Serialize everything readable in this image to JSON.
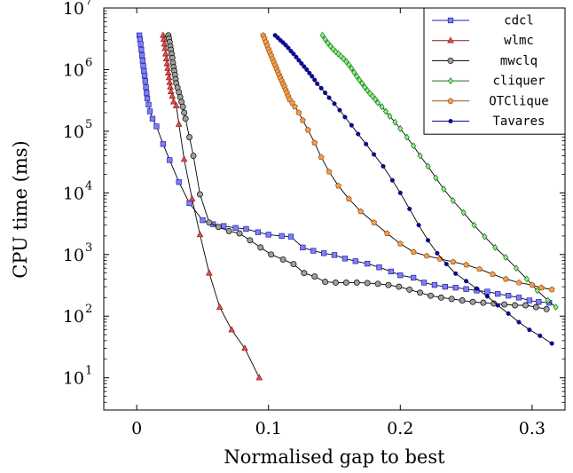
{
  "chart_data": {
    "type": "line",
    "title": "",
    "xlabel": "Normalised gap to best",
    "ylabel": "CPU time (ms)",
    "xlim": [
      -0.025,
      0.325
    ],
    "ylim": [
      3,
      10000000
    ],
    "y_scale": "log",
    "grid": false,
    "legend_position": "top-right",
    "x_ticks": [
      {
        "value": 0,
        "label": "0"
      },
      {
        "value": 0.1,
        "label": "0.1"
      },
      {
        "value": 0.2,
        "label": "0.2"
      },
      {
        "value": 0.3,
        "label": "0.3"
      }
    ],
    "y_ticks": [
      {
        "value": 10,
        "base": "10",
        "exp": "1"
      },
      {
        "value": 100,
        "base": "10",
        "exp": "2"
      },
      {
        "value": 1000,
        "base": "10",
        "exp": "3"
      },
      {
        "value": 10000,
        "base": "10",
        "exp": "4"
      },
      {
        "value": 100000,
        "base": "10",
        "exp": "5"
      },
      {
        "value": 1000000,
        "base": "10",
        "exp": "6"
      },
      {
        "value": 10000000,
        "base": "10",
        "exp": "7"
      }
    ],
    "series": [
      {
        "name": "cdcl",
        "color": "#1f1fb4",
        "fill": "#8080ee",
        "marker": "square",
        "points": [
          [
            0.002,
            3600000
          ],
          [
            0.0025,
            3100000
          ],
          [
            0.003,
            2600000
          ],
          [
            0.0035,
            2100000
          ],
          [
            0.004,
            1700000
          ],
          [
            0.0045,
            1400000
          ],
          [
            0.005,
            1150000
          ],
          [
            0.0055,
            950000
          ],
          [
            0.006,
            800000
          ],
          [
            0.0065,
            650000
          ],
          [
            0.007,
            520000
          ],
          [
            0.0075,
            420000
          ],
          [
            0.008,
            340000
          ],
          [
            0.009,
            270000
          ],
          [
            0.01,
            210000
          ],
          [
            0.012,
            160000
          ],
          [
            0.015,
            120000
          ],
          [
            0.02,
            62000
          ],
          [
            0.025,
            34000
          ],
          [
            0.032,
            15000
          ],
          [
            0.04,
            6800
          ],
          [
            0.05,
            3600
          ],
          [
            0.058,
            3100
          ],
          [
            0.066,
            2900
          ],
          [
            0.075,
            2700
          ],
          [
            0.083,
            2600
          ],
          [
            0.092,
            2300
          ],
          [
            0.1,
            2100
          ],
          [
            0.11,
            2000
          ],
          [
            0.117,
            1950
          ],
          [
            0.126,
            1300
          ],
          [
            0.134,
            1150
          ],
          [
            0.142,
            1050
          ],
          [
            0.15,
            980
          ],
          [
            0.158,
            860
          ],
          [
            0.166,
            780
          ],
          [
            0.175,
            710
          ],
          [
            0.184,
            620
          ],
          [
            0.193,
            530
          ],
          [
            0.2,
            460
          ],
          [
            0.21,
            420
          ],
          [
            0.218,
            350
          ],
          [
            0.226,
            320
          ],
          [
            0.234,
            300
          ],
          [
            0.242,
            290
          ],
          [
            0.25,
            275
          ],
          [
            0.258,
            260
          ],
          [
            0.266,
            250
          ],
          [
            0.274,
            230
          ],
          [
            0.282,
            215
          ],
          [
            0.29,
            200
          ],
          [
            0.298,
            180
          ],
          [
            0.305,
            170
          ],
          [
            0.313,
            165
          ]
        ]
      },
      {
        "name": "wlmc",
        "color": "#8b1a1a",
        "fill": "#e05050",
        "marker": "triangle",
        "points": [
          [
            0.02,
            3600000
          ],
          [
            0.0205,
            3100000
          ],
          [
            0.021,
            2600000
          ],
          [
            0.0215,
            2200000
          ],
          [
            0.022,
            1800000
          ],
          [
            0.0225,
            1500000
          ],
          [
            0.023,
            1250000
          ],
          [
            0.0235,
            1050000
          ],
          [
            0.024,
            880000
          ],
          [
            0.0245,
            740000
          ],
          [
            0.025,
            620000
          ],
          [
            0.0255,
            520000
          ],
          [
            0.026,
            440000
          ],
          [
            0.027,
            370000
          ],
          [
            0.028,
            300000
          ],
          [
            0.03,
            260000
          ],
          [
            0.032,
            130000
          ],
          [
            0.036,
            35000
          ],
          [
            0.042,
            8000
          ],
          [
            0.048,
            2100
          ],
          [
            0.055,
            500
          ],
          [
            0.063,
            140
          ],
          [
            0.072,
            60
          ],
          [
            0.082,
            30
          ],
          [
            0.093,
            10
          ]
        ]
      },
      {
        "name": "mwclq",
        "color": "#000000",
        "fill": "#a0a0a0",
        "marker": "circle",
        "points": [
          [
            0.024,
            3600000
          ],
          [
            0.0245,
            3200000
          ],
          [
            0.025,
            2800000
          ],
          [
            0.0255,
            2400000
          ],
          [
            0.026,
            2100000
          ],
          [
            0.0265,
            1800000
          ],
          [
            0.027,
            1550000
          ],
          [
            0.0275,
            1300000
          ],
          [
            0.028,
            1100000
          ],
          [
            0.0285,
            950000
          ],
          [
            0.029,
            820000
          ],
          [
            0.0295,
            700000
          ],
          [
            0.03,
            600000
          ],
          [
            0.031,
            510000
          ],
          [
            0.032,
            430000
          ],
          [
            0.033,
            360000
          ],
          [
            0.034,
            300000
          ],
          [
            0.035,
            250000
          ],
          [
            0.036,
            200000
          ],
          [
            0.037,
            160000
          ],
          [
            0.04,
            80000
          ],
          [
            0.043,
            40000
          ],
          [
            0.048,
            9500
          ],
          [
            0.055,
            3300
          ],
          [
            0.062,
            2800
          ],
          [
            0.07,
            2400
          ],
          [
            0.078,
            2200
          ],
          [
            0.086,
            1700
          ],
          [
            0.094,
            1300
          ],
          [
            0.102,
            1000
          ],
          [
            0.111,
            830
          ],
          [
            0.119,
            700
          ],
          [
            0.127,
            500
          ],
          [
            0.135,
            440
          ],
          [
            0.143,
            360
          ],
          [
            0.151,
            350
          ],
          [
            0.159,
            350
          ],
          [
            0.167,
            350
          ],
          [
            0.175,
            345
          ],
          [
            0.183,
            335
          ],
          [
            0.191,
            320
          ],
          [
            0.199,
            300
          ],
          [
            0.207,
            270
          ],
          [
            0.215,
            240
          ],
          [
            0.223,
            215
          ],
          [
            0.231,
            200
          ],
          [
            0.239,
            190
          ],
          [
            0.247,
            180
          ],
          [
            0.255,
            170
          ],
          [
            0.263,
            165
          ],
          [
            0.271,
            160
          ],
          [
            0.279,
            155
          ],
          [
            0.287,
            150
          ],
          [
            0.295,
            150
          ],
          [
            0.303,
            140
          ],
          [
            0.311,
            130
          ]
        ]
      },
      {
        "name": "cliquer",
        "color": "#127812",
        "fill": "#90ee90",
        "marker": "diamond",
        "points": [
          [
            0.141,
            3600000
          ],
          [
            0.143,
            3100000
          ],
          [
            0.145,
            2700000
          ],
          [
            0.147,
            2400000
          ],
          [
            0.149,
            2150000
          ],
          [
            0.151,
            1950000
          ],
          [
            0.153,
            1800000
          ],
          [
            0.155,
            1650000
          ],
          [
            0.157,
            1500000
          ],
          [
            0.159,
            1350000
          ],
          [
            0.161,
            1200000
          ],
          [
            0.163,
            1050000
          ],
          [
            0.165,
            900000
          ],
          [
            0.167,
            780000
          ],
          [
            0.169,
            680000
          ],
          [
            0.171,
            600000
          ],
          [
            0.173,
            520000
          ],
          [
            0.175,
            460000
          ],
          [
            0.177,
            410000
          ],
          [
            0.179,
            370000
          ],
          [
            0.181,
            330000
          ],
          [
            0.183,
            290000
          ],
          [
            0.186,
            250000
          ],
          [
            0.189,
            210000
          ],
          [
            0.192,
            175000
          ],
          [
            0.196,
            140000
          ],
          [
            0.2,
            110000
          ],
          [
            0.205,
            80000
          ],
          [
            0.21,
            58000
          ],
          [
            0.215,
            40000
          ],
          [
            0.221,
            27000
          ],
          [
            0.227,
            17500
          ],
          [
            0.233,
            11500
          ],
          [
            0.24,
            7500
          ],
          [
            0.248,
            4800
          ],
          [
            0.256,
            3000
          ],
          [
            0.264,
            1950
          ],
          [
            0.272,
            1300
          ],
          [
            0.28,
            900
          ],
          [
            0.288,
            600
          ],
          [
            0.296,
            400
          ],
          [
            0.304,
            260
          ],
          [
            0.312,
            180
          ],
          [
            0.318,
            140
          ]
        ]
      },
      {
        "name": "OTClique",
        "color": "#a0520d",
        "fill": "#f0a050",
        "marker": "pentagon",
        "points": [
          [
            0.096,
            3600000
          ],
          [
            0.097,
            3200000
          ],
          [
            0.098,
            2800000
          ],
          [
            0.099,
            2450000
          ],
          [
            0.1,
            2150000
          ],
          [
            0.101,
            1900000
          ],
          [
            0.102,
            1700000
          ],
          [
            0.103,
            1500000
          ],
          [
            0.104,
            1330000
          ],
          [
            0.105,
            1180000
          ],
          [
            0.106,
            1050000
          ],
          [
            0.107,
            930000
          ],
          [
            0.108,
            830000
          ],
          [
            0.109,
            740000
          ],
          [
            0.11,
            660000
          ],
          [
            0.111,
            590000
          ],
          [
            0.112,
            530000
          ],
          [
            0.113,
            470000
          ],
          [
            0.114,
            420000
          ],
          [
            0.115,
            370000
          ],
          [
            0.116,
            330000
          ],
          [
            0.118,
            290000
          ],
          [
            0.12,
            250000
          ],
          [
            0.123,
            200000
          ],
          [
            0.126,
            150000
          ],
          [
            0.13,
            105000
          ],
          [
            0.135,
            65000
          ],
          [
            0.14,
            38000
          ],
          [
            0.146,
            22000
          ],
          [
            0.153,
            13000
          ],
          [
            0.161,
            8000
          ],
          [
            0.17,
            5000
          ],
          [
            0.18,
            3300
          ],
          [
            0.19,
            2200
          ],
          [
            0.2,
            1500
          ],
          [
            0.21,
            1100
          ],
          [
            0.22,
            950
          ],
          [
            0.23,
            850
          ],
          [
            0.24,
            760
          ],
          [
            0.25,
            680
          ],
          [
            0.26,
            580
          ],
          [
            0.27,
            480
          ],
          [
            0.28,
            400
          ],
          [
            0.29,
            350
          ],
          [
            0.3,
            320
          ],
          [
            0.307,
            290
          ],
          [
            0.315,
            270
          ]
        ]
      },
      {
        "name": "Tavares",
        "color": "#0a0a8b",
        "fill": "#0a0a8b",
        "marker": "dot",
        "points": [
          [
            0.105,
            3600000
          ],
          [
            0.107,
            3300000
          ],
          [
            0.109,
            3000000
          ],
          [
            0.111,
            2750000
          ],
          [
            0.113,
            2500000
          ],
          [
            0.115,
            2250000
          ],
          [
            0.117,
            2000000
          ],
          [
            0.119,
            1800000
          ],
          [
            0.121,
            1600000
          ],
          [
            0.123,
            1420000
          ],
          [
            0.125,
            1260000
          ],
          [
            0.127,
            1120000
          ],
          [
            0.129,
            1000000
          ],
          [
            0.131,
            880000
          ],
          [
            0.133,
            780000
          ],
          [
            0.135,
            680000
          ],
          [
            0.137,
            590000
          ],
          [
            0.14,
            500000
          ],
          [
            0.143,
            420000
          ],
          [
            0.146,
            350000
          ],
          [
            0.15,
            280000
          ],
          [
            0.154,
            220000
          ],
          [
            0.158,
            170000
          ],
          [
            0.163,
            125000
          ],
          [
            0.168,
            90000
          ],
          [
            0.174,
            62000
          ],
          [
            0.18,
            42000
          ],
          [
            0.187,
            27000
          ],
          [
            0.194,
            16000
          ],
          [
            0.2,
            10000
          ],
          [
            0.207,
            5500
          ],
          [
            0.214,
            3000
          ],
          [
            0.221,
            1700
          ],
          [
            0.228,
            1050
          ],
          [
            0.235,
            700
          ],
          [
            0.242,
            490
          ],
          [
            0.25,
            370
          ],
          [
            0.258,
            280
          ],
          [
            0.266,
            210
          ],
          [
            0.274,
            150
          ],
          [
            0.282,
            110
          ],
          [
            0.29,
            80
          ],
          [
            0.298,
            60
          ],
          [
            0.306,
            48
          ],
          [
            0.315,
            36
          ]
        ]
      }
    ]
  }
}
